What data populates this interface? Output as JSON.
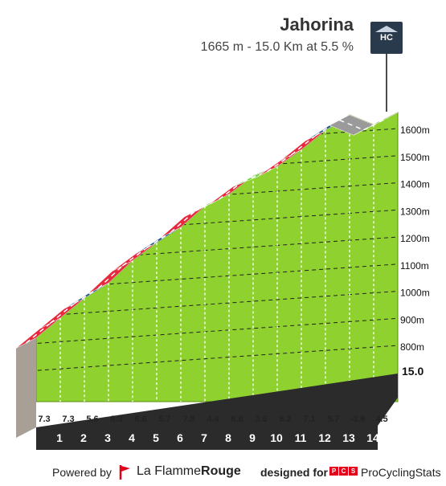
{
  "header": {
    "title": "Jahorina",
    "subtitle": "1665 m - 15.0 Km at 5.5 %",
    "category_badge": "HC"
  },
  "chart_data": {
    "type": "area",
    "title": "Jahorina",
    "subtitle": "1665 m - 15.0 Km at 5.5 %",
    "x_label": "",
    "y_label": "",
    "x_ticks": [
      "1",
      "2",
      "3",
      "4",
      "5",
      "6",
      "7",
      "8",
      "9",
      "10",
      "11",
      "12",
      "13",
      "14"
    ],
    "x_end_label": "15.0",
    "y_ticks": [
      "800m",
      "900m",
      "1000m",
      "1100m",
      "1200m",
      "1300m",
      "1400m",
      "1500m",
      "1600m"
    ],
    "ylim": [
      620,
      1665
    ],
    "xlim": [
      0,
      15
    ],
    "segments": [
      {
        "km": 1,
        "gradient": 7.3,
        "color": "#e8283c"
      },
      {
        "km": 2,
        "gradient": 7.3,
        "color": "#e8283c"
      },
      {
        "km": 3,
        "gradient": 5.6,
        "color": "#1f5a8a"
      },
      {
        "km": 4,
        "gradient": 8.3,
        "color": "#e8283c"
      },
      {
        "km": 5,
        "gradient": 6.6,
        "color": "#e8283c"
      },
      {
        "km": 6,
        "gradient": 5.7,
        "color": "#1f5a8a"
      },
      {
        "km": 7,
        "gradient": 7.8,
        "color": "#e8283c"
      },
      {
        "km": 8,
        "gradient": 4.4,
        "color": "#1f5a8a"
      },
      {
        "km": 9,
        "gradient": 6.6,
        "color": "#e8283c"
      },
      {
        "km": 10,
        "gradient": 3.6,
        "color": "#6fcf3a"
      },
      {
        "km": 11,
        "gradient": 6.2,
        "color": "#e8283c"
      },
      {
        "km": 12,
        "gradient": 7.1,
        "color": "#e8283c"
      },
      {
        "km": 13,
        "gradient": 5.7,
        "color": "#1f5a8a"
      },
      {
        "km": 14,
        "gradient": -3.6,
        "color": "#9a9a9a"
      },
      {
        "km": 15,
        "gradient": 4.5,
        "color": "#1f5a8a"
      }
    ],
    "colors": {
      "fill": "#8fd12e",
      "road_edge": "#5a8f12",
      "base": "#2b2b2b",
      "wall": "#a89f97"
    }
  },
  "footer": {
    "powered_by": "Powered by",
    "flamme_light": "La Flamme",
    "flamme_bold": "Rouge",
    "designed_for": "designed for",
    "pcs_logo": [
      "P",
      "C",
      "S"
    ],
    "pcs": "ProCyclingStats"
  }
}
